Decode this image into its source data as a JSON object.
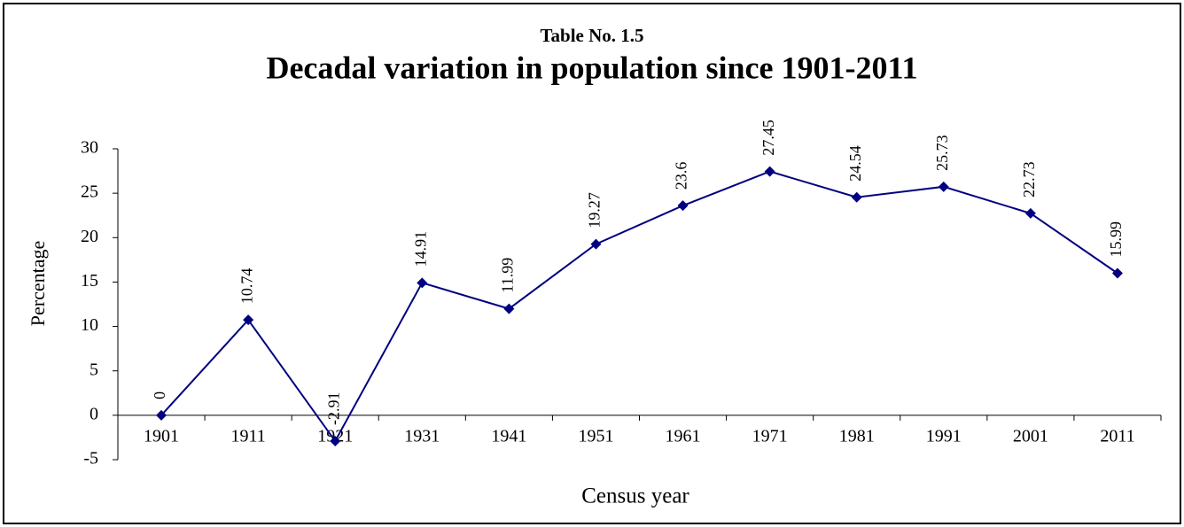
{
  "chart_data": {
    "type": "line",
    "subtitle": "Table No. 1.5",
    "title": "Decadal variation in population since 1901-2011",
    "x_label": "Census year",
    "y_label": "Percentage",
    "categories": [
      "1901",
      "1911",
      "1921",
      "1931",
      "1941",
      "1951",
      "1961",
      "1971",
      "1981",
      "1991",
      "2001",
      "2011"
    ],
    "values": [
      0,
      10.74,
      -2.91,
      14.91,
      11.99,
      19.27,
      23.6,
      27.45,
      24.54,
      25.73,
      22.73,
      15.99
    ],
    "color": "#000080",
    "ylim": [
      -5,
      30
    ],
    "yticks": [
      -5,
      0,
      5,
      10,
      15,
      20,
      25,
      30
    ],
    "grid": false
  }
}
